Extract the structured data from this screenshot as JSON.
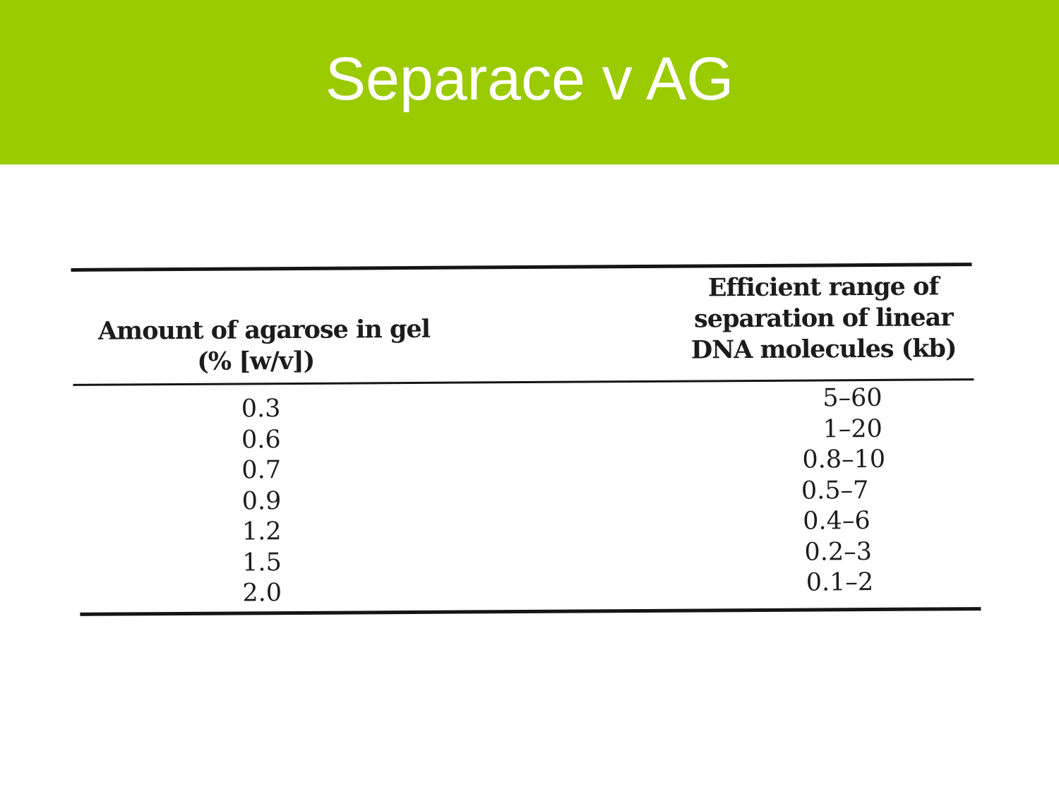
{
  "slide": {
    "title": "Separace v AG",
    "header_color": "#9ACA00",
    "text_color": "#ffffff"
  },
  "table": {
    "columns": [
      {
        "header_lines": [
          "Amount of agarose in gel",
          "(% [w/v])"
        ]
      },
      {
        "header_lines": [
          "Efficient range of",
          "separation of linear",
          "DNA molecules (kb)"
        ]
      }
    ],
    "rows": [
      {
        "agarose": "0.3",
        "range": "5–60"
      },
      {
        "agarose": "0.6",
        "range": "1–20"
      },
      {
        "agarose": "0.7",
        "range": "0.8–10"
      },
      {
        "agarose": "0.9",
        "range": "0.5–7"
      },
      {
        "agarose": "1.2",
        "range": "0.4–6"
      },
      {
        "agarose": "1.5",
        "range": "0.2–3"
      },
      {
        "agarose": "2.0",
        "range": "0.1–2"
      }
    ]
  }
}
